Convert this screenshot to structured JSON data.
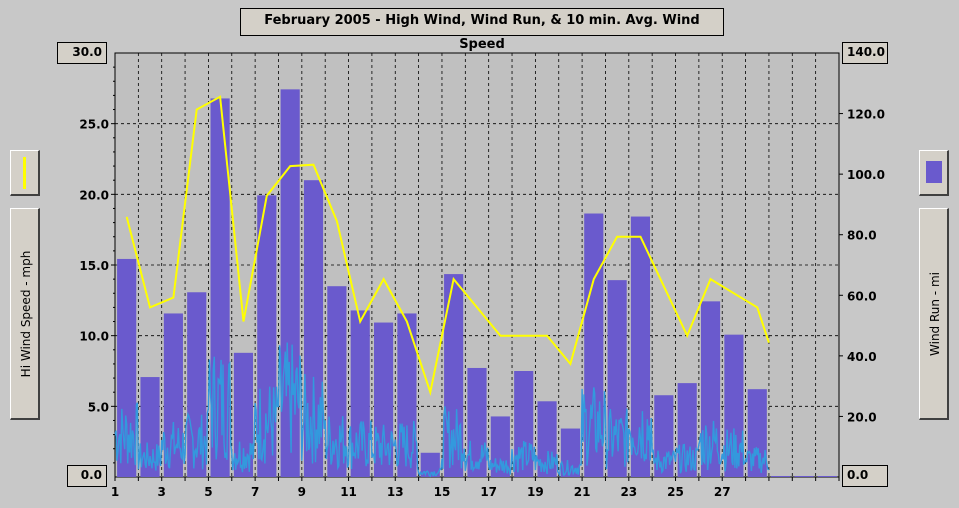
{
  "chart_data": {
    "type": "bar",
    "title": "February 2005 - High Wind, Wind Run, & 10 min. Avg. Wind Speed",
    "ylabel": "Hi Wind Speed - mph",
    "y2label": "Wind Run - mi",
    "ylim": [
      0,
      30
    ],
    "y2lim": [
      0,
      140
    ],
    "yticks": [
      "0.0",
      "5.0",
      "10.0",
      "15.0",
      "20.0",
      "25.0",
      "30.0"
    ],
    "y2ticks": [
      "0.0",
      "20.0",
      "40.0",
      "60.0",
      "80.0",
      "100.0",
      "120.0",
      "140.0"
    ],
    "xticks": [
      "1",
      "3",
      "5",
      "7",
      "9",
      "11",
      "13",
      "15",
      "17",
      "19",
      "21",
      "23",
      "25",
      "27"
    ],
    "xlim": [
      1,
      32
    ],
    "grid": true,
    "colors": {
      "bars": "#6a5acd",
      "high_wind_line": "#ffff00",
      "avg_speed": "#3399dd",
      "plot_bg": "#c0c0c0"
    },
    "days": [
      1,
      2,
      3,
      4,
      5,
      6,
      7,
      8,
      9,
      10,
      11,
      12,
      13,
      14,
      15,
      16,
      17,
      18,
      19,
      20,
      21,
      22,
      23,
      24,
      25,
      26,
      27,
      28
    ],
    "wind_run": [
      72,
      33,
      54,
      61,
      125,
      41,
      93,
      128,
      98,
      63,
      55,
      51,
      54,
      8,
      67,
      36,
      20,
      35,
      25,
      16,
      87,
      65,
      86,
      27,
      31,
      58,
      47,
      29
    ],
    "hi_wind": [
      18.4,
      12.0,
      12.7,
      26.0,
      26.9,
      11.0,
      19.9,
      22.0,
      22.1,
      18.1,
      11.0,
      14.0,
      11.0,
      6.0,
      14.0,
      12.0,
      10.0,
      10.0,
      10.0,
      8.0,
      14.0,
      17.0,
      17.0,
      13.5,
      10.0,
      14.0,
      13.0,
      12.0
    ],
    "hi_wind_end": 9.5
  },
  "legend": {
    "left_icon": "yellow-line-swatch",
    "right_icon": "blue-bar-swatch"
  }
}
